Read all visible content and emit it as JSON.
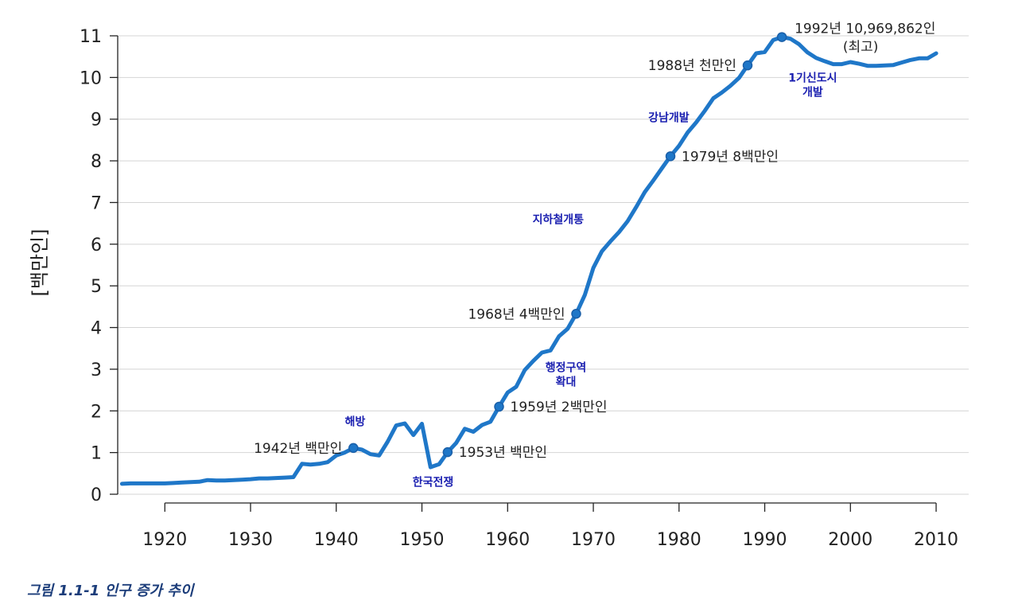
{
  "chart_data": {
    "type": "line",
    "title": "",
    "xlabel": "",
    "ylabel": "[백만인]",
    "xlim": [
      1914.5,
      2013.8
    ],
    "ylim": [
      0,
      11
    ],
    "xticks": [
      1920,
      1930,
      1940,
      1950,
      1960,
      1970,
      1980,
      1990,
      2000,
      2010
    ],
    "yticks": [
      0,
      1,
      2,
      3,
      4,
      5,
      6,
      7,
      8,
      9,
      10,
      11
    ],
    "grid": true,
    "line_color": "#1f77c8",
    "series": [
      {
        "name": "",
        "x": [
          1915,
          1916,
          1917,
          1918,
          1919,
          1920,
          1921,
          1922,
          1923,
          1924,
          1925,
          1926,
          1927,
          1928,
          1929,
          1930,
          1931,
          1932,
          1933,
          1934,
          1935,
          1936,
          1937,
          1938,
          1939,
          1940,
          1941,
          1942,
          1943,
          1944,
          1945,
          1946,
          1947,
          1948,
          1949,
          1950,
          1951,
          1952,
          1953,
          1954,
          1955,
          1956,
          1957,
          1958,
          1959,
          1960,
          1961,
          1962,
          1963,
          1964,
          1965,
          1966,
          1967,
          1968,
          1969,
          1970,
          1971,
          1972,
          1973,
          1974,
          1975,
          1976,
          1977,
          1978,
          1979,
          1980,
          1981,
          1982,
          1983,
          1984,
          1985,
          1986,
          1987,
          1988,
          1989,
          1990,
          1991,
          1992,
          1993,
          1994,
          1995,
          1996,
          1997,
          1998,
          1999,
          2000,
          2001,
          2002,
          2003,
          2004,
          2005,
          2006,
          2007,
          2008,
          2009,
          2010
        ],
        "y": [
          0.25,
          0.26,
          0.26,
          0.26,
          0.26,
          0.26,
          0.27,
          0.28,
          0.29,
          0.3,
          0.34,
          0.33,
          0.33,
          0.34,
          0.35,
          0.36,
          0.38,
          0.38,
          0.39,
          0.4,
          0.41,
          0.73,
          0.71,
          0.73,
          0.77,
          0.93,
          1.0,
          1.11,
          1.07,
          0.96,
          0.93,
          1.26,
          1.65,
          1.7,
          1.42,
          1.69,
          0.65,
          0.72,
          1.01,
          1.23,
          1.57,
          1.5,
          1.66,
          1.74,
          2.1,
          2.44,
          2.58,
          2.98,
          3.2,
          3.4,
          3.45,
          3.79,
          3.97,
          4.33,
          4.78,
          5.43,
          5.83,
          6.07,
          6.29,
          6.55,
          6.89,
          7.25,
          7.53,
          7.82,
          8.11,
          8.36,
          8.68,
          8.92,
          9.2,
          9.5,
          9.64,
          9.8,
          9.99,
          10.29,
          10.58,
          10.61,
          10.9,
          10.97,
          10.93,
          10.8,
          10.6,
          10.47,
          10.39,
          10.32,
          10.32,
          10.37,
          10.33,
          10.28,
          10.28,
          10.29,
          10.3,
          10.36,
          10.42,
          10.46,
          10.46,
          10.58
        ]
      }
    ],
    "milestones": [
      {
        "x": 1942,
        "y": 1.11,
        "label": "1942년 백만인",
        "side": "left"
      },
      {
        "x": 1953,
        "y": 1.01,
        "label": "1953년 백만인",
        "side": "right"
      },
      {
        "x": 1959,
        "y": 2.1,
        "label": "1959년 2백만인",
        "side": "right"
      },
      {
        "x": 1968,
        "y": 4.33,
        "label": "1968년 4백만인",
        "side": "left"
      },
      {
        "x": 1979,
        "y": 8.11,
        "label": "1979년 8백만인",
        "side": "right"
      },
      {
        "x": 1988,
        "y": 10.29,
        "label": "1988년 천만인",
        "side": "left"
      },
      {
        "x": 1992,
        "y": 10.97,
        "label": "1992년 10,969,862인",
        "sublabel": "(최고)",
        "side": "above"
      }
    ],
    "events": [
      {
        "x": 1942.2,
        "y": 1.65,
        "lines": [
          "해방"
        ]
      },
      {
        "x": 1951.3,
        "y": 0.2,
        "lines": [
          "한국전쟁"
        ]
      },
      {
        "x": 1966.8,
        "y": 2.95,
        "lines": [
          "행정구역",
          "확대"
        ]
      },
      {
        "x": 1965.9,
        "y": 6.5,
        "lines": [
          "지하철개통"
        ]
      },
      {
        "x": 1978.8,
        "y": 8.95,
        "lines": [
          "강남개발"
        ]
      },
      {
        "x": 1995.6,
        "y": 9.9,
        "lines": [
          "1기신도시",
          "개발"
        ]
      }
    ]
  },
  "caption": "그림 1.1-1 인구 증가 추이"
}
